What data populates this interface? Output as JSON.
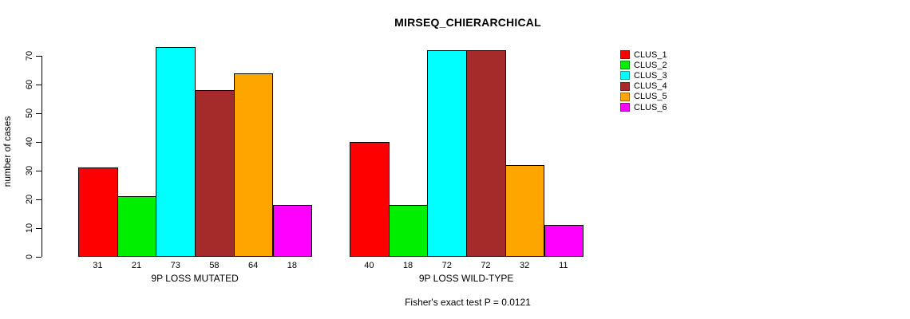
{
  "title": "MIRSEQ_CHIERARCHICAL",
  "chart_data": {
    "type": "bar",
    "title": "MIRSEQ_CHIERARCHICAL",
    "ylabel": "number of cases",
    "xlabel": "",
    "ylim": [
      0,
      73
    ],
    "yticks": [
      0,
      10,
      20,
      30,
      40,
      50,
      60,
      70
    ],
    "grid": false,
    "legend_position": "right",
    "background": "#FFFFFF",
    "bar_border_color": "#000000",
    "series": [
      {
        "name": "CLUS_1",
        "color": "#FF0000"
      },
      {
        "name": "CLUS_2",
        "color": "#00EE00"
      },
      {
        "name": "CLUS_3",
        "color": "#00FFFF"
      },
      {
        "name": "CLUS_4",
        "color": "#A52A2A"
      },
      {
        "name": "CLUS_5",
        "color": "#FFA500"
      },
      {
        "name": "CLUS_6",
        "color": "#FF00FF"
      }
    ],
    "groups": [
      {
        "label": "9P LOSS MUTATED",
        "values": [
          31,
          21,
          73,
          58,
          64,
          18
        ]
      },
      {
        "label": "9P LOSS WILD-TYPE",
        "values": [
          40,
          18,
          72,
          72,
          32,
          11
        ]
      }
    ],
    "annotation": "Fisher's exact test P = 0.0121"
  }
}
